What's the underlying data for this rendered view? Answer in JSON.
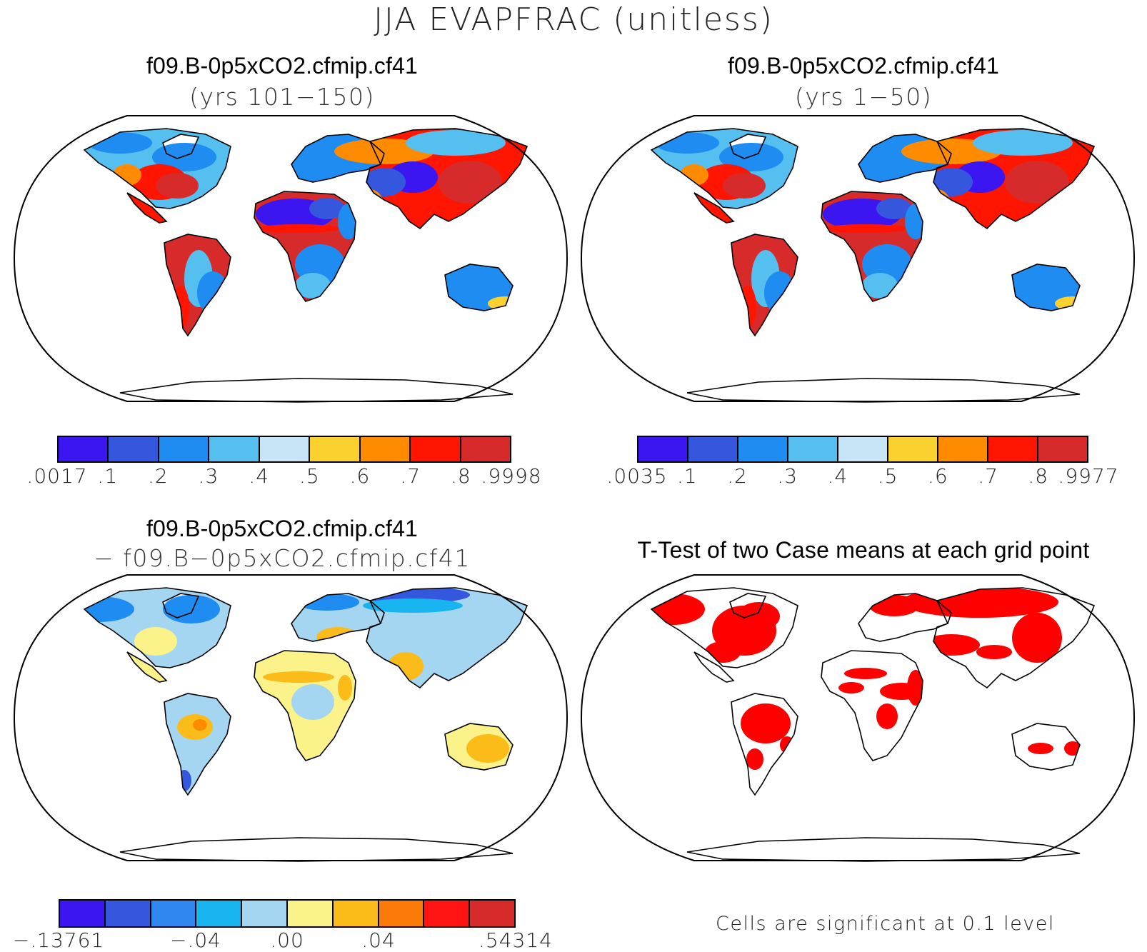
{
  "title": "JJA EVAPFRAC (unitless)",
  "panels": [
    {
      "title": "f09.B-0p5xCO2.cfmip.cf41",
      "subtitle": "(yrs 101−150)",
      "colorbar": {
        "colors": [
          "#3b16f0",
          "#3557de",
          "#1e8cf0",
          "#55bff0",
          "#c6e6f7",
          "#fbd130",
          "#ff8c00",
          "#ff1500",
          "#d72a2a"
        ],
        "labels": [
          ".0017",
          ".1",
          ".2",
          ".3",
          ".4",
          ".5",
          ".6",
          ".7",
          ".8",
          ".9998"
        ]
      }
    },
    {
      "title": "f09.B-0p5xCO2.cfmip.cf41",
      "subtitle": "(yrs 1−50)",
      "colorbar": {
        "colors": [
          "#3b16f0",
          "#3557de",
          "#1e8cf0",
          "#55bff0",
          "#c6e6f7",
          "#fbd130",
          "#ff8c00",
          "#ff1500",
          "#d72a2a"
        ],
        "labels": [
          ".0035",
          ".1",
          ".2",
          ".3",
          ".4",
          ".5",
          ".6",
          ".7",
          ".8",
          ".9977"
        ]
      }
    },
    {
      "title": "f09.B-0p5xCO2.cfmip.cf41",
      "subtitle": "− f09.B−0p5xCO2.cfmip.cf41",
      "colorbar": {
        "colors": [
          "#3b16f0",
          "#3557de",
          "#2e86ee",
          "#18b4f0",
          "#a4d6f2",
          "#fcf28a",
          "#fbbc1a",
          "#fc7a08",
          "#ff1414",
          "#d72a2a"
        ],
        "labels": [
          "−.13761",
          "−.04",
          ".00",
          ".04",
          ".54314"
        ]
      }
    },
    {
      "title": "T-Test of two Case means at each grid point",
      "note": "Cells are significant at 0.1 level"
    }
  ]
}
